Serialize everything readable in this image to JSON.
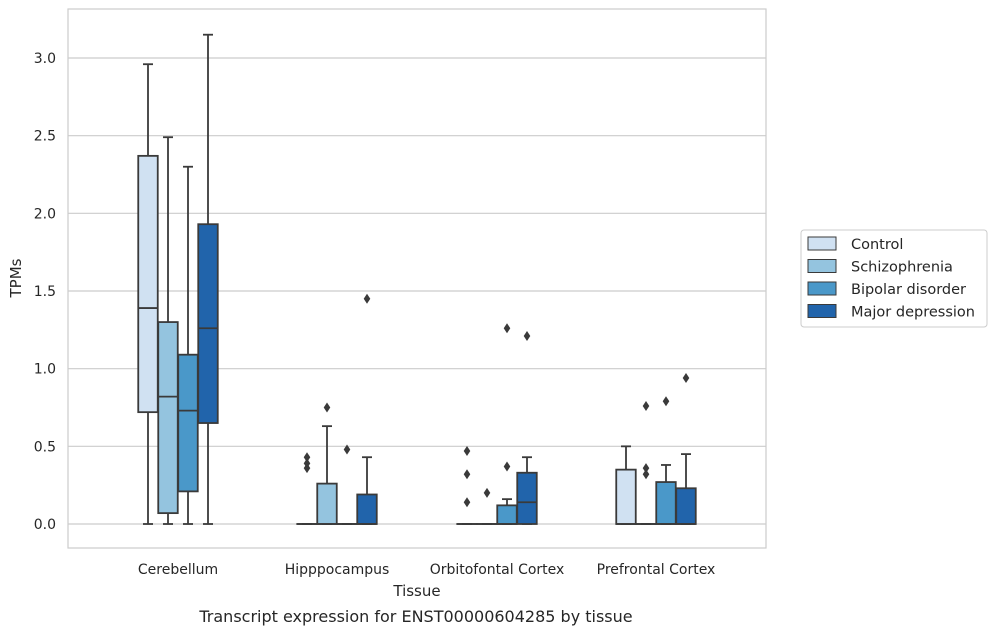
{
  "caption": "Transcript expression for ENST00000604285 by tissue",
  "chart_data": {
    "type": "box",
    "xlabel": "Tissue",
    "ylabel": "TPMs",
    "ylim": [
      -0.15,
      3.32
    ],
    "yticks": [
      "0.0",
      "0.5",
      "1.0",
      "1.5",
      "2.0",
      "2.5",
      "3.0"
    ],
    "grid": "horizontal",
    "legend_position": "right",
    "categories": [
      "Cerebellum",
      "Hipppocampus",
      "Orbitofontal Cortex",
      "Prefrontal Cortex"
    ],
    "series": [
      {
        "name": "Control",
        "color": "#d0e1f2",
        "boxes": [
          {
            "whislo": 0.0,
            "q1": 0.72,
            "med": 1.39,
            "q3": 2.37,
            "whishi": 2.96,
            "fliers": []
          },
          {
            "whislo": 0.0,
            "q1": 0.0,
            "med": 0.0,
            "q3": 0.0,
            "whishi": 0.0,
            "fliers": [
              0.36,
              0.39,
              0.43
            ]
          },
          {
            "whislo": 0.0,
            "q1": 0.0,
            "med": 0.0,
            "q3": 0.0,
            "whishi": 0.0,
            "fliers": [
              0.14,
              0.32,
              0.47
            ]
          },
          {
            "whislo": 0.0,
            "q1": 0.0,
            "med": 0.0,
            "q3": 0.35,
            "whishi": 0.5,
            "fliers": []
          }
        ]
      },
      {
        "name": "Schizophrenia",
        "color": "#94c4df",
        "boxes": [
          {
            "whislo": 0.0,
            "q1": 0.07,
            "med": 0.82,
            "q3": 1.3,
            "whishi": 2.49,
            "fliers": []
          },
          {
            "whislo": 0.0,
            "q1": 0.0,
            "med": 0.0,
            "q3": 0.26,
            "whishi": 0.63,
            "fliers": [
              0.75
            ]
          },
          {
            "whislo": 0.0,
            "q1": 0.0,
            "med": 0.0,
            "q3": 0.0,
            "whishi": 0.0,
            "fliers": [
              0.2
            ]
          },
          {
            "whislo": 0.0,
            "q1": 0.0,
            "med": 0.0,
            "q3": 0.0,
            "whishi": 0.0,
            "fliers": [
              0.32,
              0.36,
              0.76
            ]
          }
        ]
      },
      {
        "name": "Bipolar disorder",
        "color": "#4a98c9",
        "boxes": [
          {
            "whislo": 0.0,
            "q1": 0.21,
            "med": 0.73,
            "q3": 1.09,
            "whishi": 2.3,
            "fliers": []
          },
          {
            "whislo": 0.0,
            "q1": 0.0,
            "med": 0.0,
            "q3": 0.0,
            "whishi": 0.0,
            "fliers": [
              0.48
            ]
          },
          {
            "whislo": 0.0,
            "q1": 0.0,
            "med": 0.0,
            "q3": 0.12,
            "whishi": 0.16,
            "fliers": [
              0.37,
              1.26
            ]
          },
          {
            "whislo": 0.0,
            "q1": 0.0,
            "med": 0.0,
            "q3": 0.27,
            "whishi": 0.38,
            "fliers": [
              0.79
            ]
          }
        ]
      },
      {
        "name": "Major depression",
        "color": "#2164ab",
        "boxes": [
          {
            "whislo": 0.0,
            "q1": 0.65,
            "med": 1.26,
            "q3": 1.93,
            "whishi": 3.15,
            "fliers": []
          },
          {
            "whislo": 0.0,
            "q1": 0.0,
            "med": 0.0,
            "q3": 0.19,
            "whishi": 0.43,
            "fliers": [
              1.45
            ]
          },
          {
            "whislo": 0.0,
            "q1": 0.0,
            "med": 0.14,
            "q3": 0.33,
            "whishi": 0.43,
            "fliers": [
              1.21
            ]
          },
          {
            "whislo": 0.0,
            "q1": 0.0,
            "med": 0.0,
            "q3": 0.23,
            "whishi": 0.45,
            "fliers": [
              0.94
            ]
          }
        ]
      }
    ]
  }
}
